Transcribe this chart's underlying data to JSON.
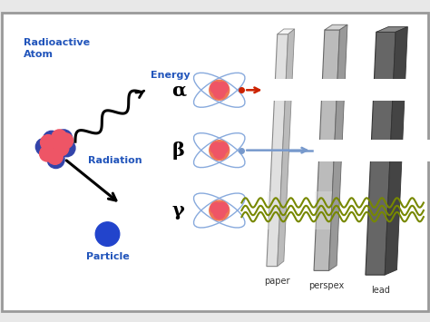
{
  "bg_color": "#e8e8e8",
  "border_color": "#999999",
  "radioactive_label": "Radioactive\nAtom",
  "energy_label": "Energy",
  "radiation_label": "Radiation",
  "particle_label": "Particle",
  "alpha_label": "α",
  "beta_label": "β",
  "gamma_label": "γ",
  "paper_label": "paper",
  "perspex_label": "perspex",
  "lead_label": "lead",
  "alpha_color": "#cc2200",
  "beta_color": "#7799cc",
  "gamma_color": "#778800",
  "atom_pink": "#ee5566",
  "atom_blue": "#3344aa",
  "label_blue": "#2255bb",
  "nucleus_orange": "#ee8844",
  "panel1_face": "#e0e0e0",
  "panel1_top": "#f5f5f5",
  "panel1_side": "#bbbbbb",
  "panel1_edge": "#888888",
  "panel2_face": "#bbbbbb",
  "panel2_top": "#d5d5d5",
  "panel2_side": "#999999",
  "panel2_edge": "#666666",
  "panel3_face": "#666666",
  "panel3_top": "#888888",
  "panel3_side": "#444444",
  "panel3_edge": "#333333"
}
